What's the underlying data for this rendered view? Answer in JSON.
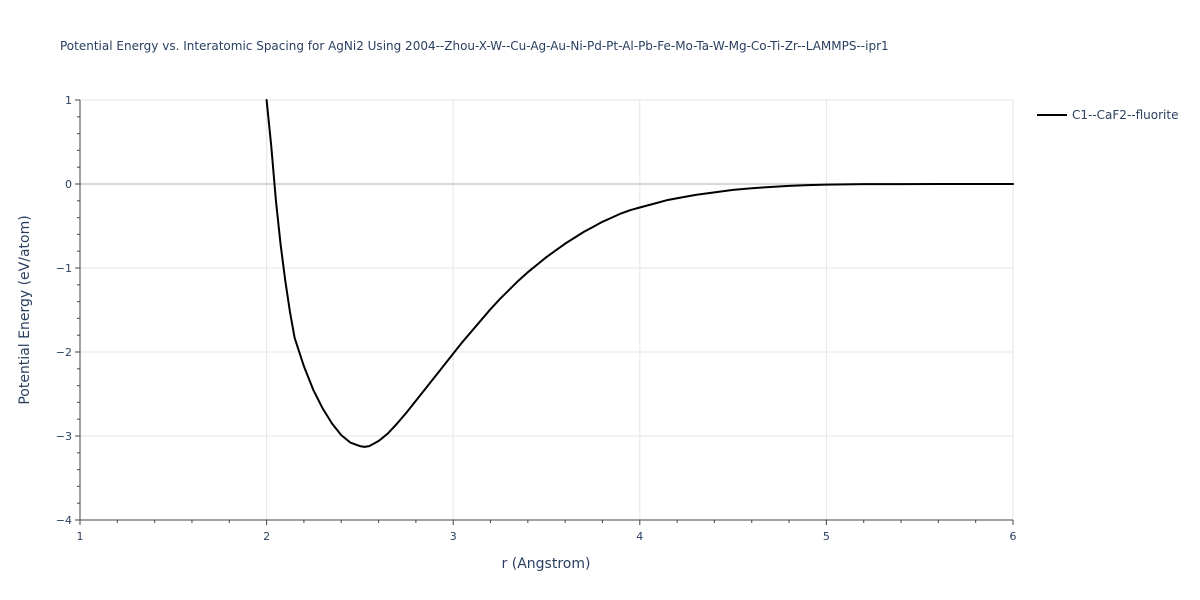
{
  "chart_data": {
    "type": "line",
    "title": "Potential Energy vs. Interatomic Spacing for AgNi2 Using 2004--Zhou-X-W--Cu-Ag-Au-Ni-Pd-Pt-Al-Pb-Fe-Mo-Ta-W-Mg-Co-Ti-Zr--LAMMPS--ipr1",
    "xlabel": "r (Angstrom)",
    "ylabel": "Potential Energy (eV/atom)",
    "xlim": [
      1,
      6
    ],
    "ylim": [
      -4,
      1
    ],
    "x_ticks": [
      1,
      2,
      3,
      4,
      5,
      6
    ],
    "y_ticks": [
      1,
      0,
      -1,
      -2,
      -3,
      -4
    ],
    "x_tick_labels": [
      "1",
      "2",
      "3",
      "4",
      "5",
      "6"
    ],
    "y_tick_labels": [
      "1",
      "0",
      "−1",
      "−2",
      "−3",
      "−4"
    ],
    "grid": true,
    "legend_position": "top-right-outside",
    "series": [
      {
        "name": "C1--CaF2--fluorite",
        "color": "#000000",
        "x": [
          2.0,
          2.025,
          2.05,
          2.075,
          2.1,
          2.125,
          2.15,
          2.2,
          2.25,
          2.3,
          2.35,
          2.4,
          2.45,
          2.5,
          2.525,
          2.55,
          2.6,
          2.65,
          2.7,
          2.75,
          2.8,
          2.85,
          2.9,
          2.95,
          3.0,
          3.05,
          3.1,
          3.15,
          3.2,
          3.25,
          3.3,
          3.35,
          3.4,
          3.45,
          3.5,
          3.55,
          3.6,
          3.65,
          3.7,
          3.75,
          3.8,
          3.85,
          3.9,
          3.95,
          4.0,
          4.05,
          4.1,
          4.15,
          4.2,
          4.3,
          4.4,
          4.5,
          4.6,
          4.7,
          4.8,
          4.9,
          5.0,
          5.1,
          5.2,
          5.3,
          5.4,
          5.6,
          5.8,
          6.0
        ],
        "y": [
          1.0,
          0.45,
          -0.2,
          -0.72,
          -1.15,
          -1.52,
          -1.83,
          -2.17,
          -2.45,
          -2.67,
          -2.85,
          -2.99,
          -3.08,
          -3.12,
          -3.13,
          -3.12,
          -3.06,
          -2.97,
          -2.85,
          -2.72,
          -2.58,
          -2.44,
          -2.3,
          -2.16,
          -2.02,
          -1.88,
          -1.75,
          -1.62,
          -1.49,
          -1.37,
          -1.26,
          -1.15,
          -1.05,
          -0.96,
          -0.87,
          -0.79,
          -0.71,
          -0.64,
          -0.57,
          -0.51,
          -0.45,
          -0.4,
          -0.35,
          -0.31,
          -0.28,
          -0.25,
          -0.22,
          -0.19,
          -0.17,
          -0.13,
          -0.1,
          -0.07,
          -0.05,
          -0.035,
          -0.022,
          -0.013,
          -0.007,
          -0.004,
          -0.002,
          -0.001,
          -0.001,
          0.0,
          0.0,
          0.0
        ]
      }
    ]
  }
}
